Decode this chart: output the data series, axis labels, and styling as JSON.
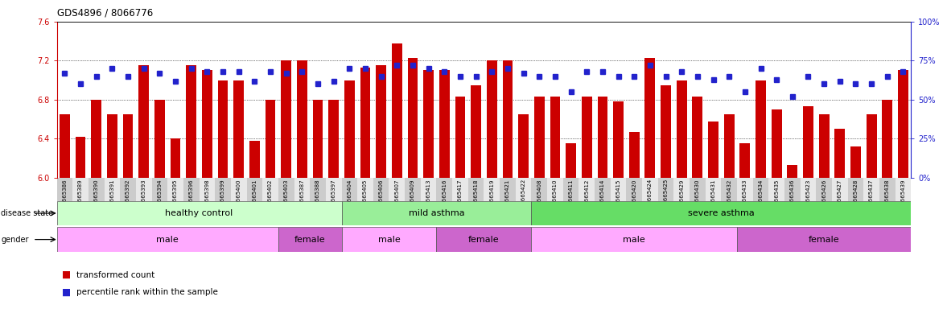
{
  "title": "GDS4896 / 8066776",
  "ylim": [
    6.0,
    7.6
  ],
  "yticks_left": [
    6.0,
    6.4,
    6.8,
    7.2,
    7.6
  ],
  "yticks_right": [
    0,
    25,
    50,
    75,
    100
  ],
  "bar_color": "#CC0000",
  "dot_color": "#2222CC",
  "samples": [
    "GSM665386",
    "GSM665389",
    "GSM665390",
    "GSM665391",
    "GSM665392",
    "GSM665393",
    "GSM665394",
    "GSM665395",
    "GSM665396",
    "GSM665398",
    "GSM665399",
    "GSM665400",
    "GSM665401",
    "GSM665402",
    "GSM665403",
    "GSM665387",
    "GSM665388",
    "GSM665397",
    "GSM665404",
    "GSM665405",
    "GSM665406",
    "GSM665407",
    "GSM665409",
    "GSM665413",
    "GSM665416",
    "GSM665417",
    "GSM665418",
    "GSM665419",
    "GSM665421",
    "GSM665422",
    "GSM665408",
    "GSM665410",
    "GSM665411",
    "GSM665412",
    "GSM665414",
    "GSM665415",
    "GSM665420",
    "GSM665424",
    "GSM665425",
    "GSM665429",
    "GSM665430",
    "GSM665431",
    "GSM665432",
    "GSM665433",
    "GSM665434",
    "GSM665435",
    "GSM665436",
    "GSM665423",
    "GSM665426",
    "GSM665427",
    "GSM665428",
    "GSM665437",
    "GSM665438",
    "GSM665439"
  ],
  "bar_values": [
    6.65,
    6.42,
    6.8,
    6.65,
    6.65,
    7.15,
    6.8,
    6.4,
    7.15,
    7.1,
    7.0,
    7.0,
    6.38,
    6.8,
    7.2,
    7.2,
    6.8,
    6.8,
    7.0,
    7.13,
    7.15,
    7.38,
    7.23,
    7.1,
    7.1,
    6.83,
    6.95,
    7.2,
    7.2,
    6.65,
    6.83,
    6.83,
    6.35,
    6.83,
    6.83,
    6.78,
    6.47,
    7.23,
    6.95,
    7.0,
    6.83,
    6.58,
    6.65,
    6.35,
    7.0,
    6.7,
    6.13,
    6.73,
    6.65,
    6.5,
    6.32,
    6.65,
    6.8,
    7.1
  ],
  "percentile_values": [
    67,
    60,
    65,
    70,
    65,
    70,
    67,
    62,
    70,
    68,
    68,
    68,
    62,
    68,
    67,
    68,
    60,
    62,
    70,
    70,
    65,
    72,
    72,
    70,
    68,
    65,
    65,
    68,
    70,
    67,
    65,
    65,
    55,
    68,
    68,
    65,
    65,
    72,
    65,
    68,
    65,
    63,
    65,
    55,
    70,
    63,
    52,
    65,
    60,
    62,
    60,
    60,
    65,
    68
  ],
  "disease_groups": [
    {
      "label": "healthy control",
      "start": 0,
      "end": 18,
      "color": "#ccffcc"
    },
    {
      "label": "mild asthma",
      "start": 18,
      "end": 30,
      "color": "#99ee99"
    },
    {
      "label": "severe asthma",
      "start": 30,
      "end": 54,
      "color": "#66dd66"
    }
  ],
  "gender_groups": [
    {
      "label": "male",
      "start": 0,
      "end": 14,
      "color": "#ffaaff"
    },
    {
      "label": "female",
      "start": 14,
      "end": 18,
      "color": "#cc66cc"
    },
    {
      "label": "male",
      "start": 18,
      "end": 24,
      "color": "#ffaaff"
    },
    {
      "label": "female",
      "start": 24,
      "end": 30,
      "color": "#cc66cc"
    },
    {
      "label": "male",
      "start": 30,
      "end": 43,
      "color": "#ffaaff"
    },
    {
      "label": "female",
      "start": 43,
      "end": 54,
      "color": "#cc66cc"
    }
  ]
}
